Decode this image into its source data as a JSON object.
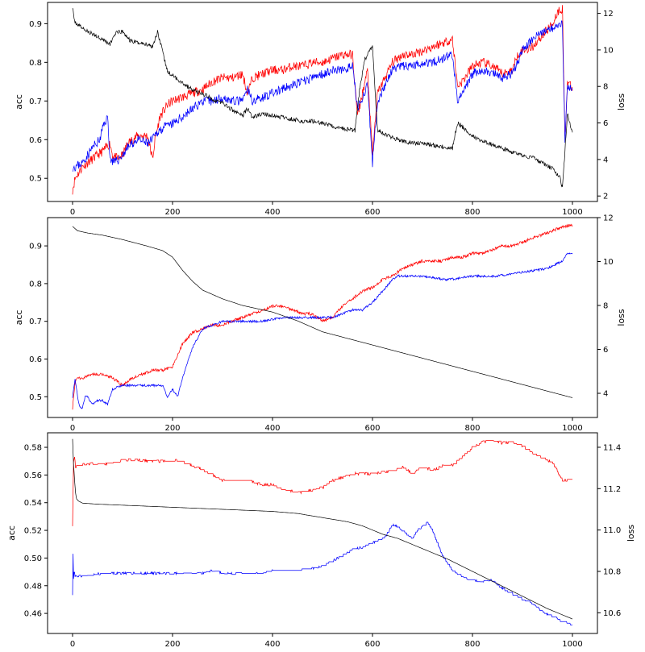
{
  "colors": {
    "train_acc": "#ff0000",
    "val_acc": "#0000ff",
    "loss": "#000000"
  },
  "chart_data": [
    {
      "type": "line",
      "ylabel": "acc",
      "y2label": "loss",
      "xlim": [
        -50,
        1050
      ],
      "ylim": [
        0.44,
        0.955
      ],
      "y2lim": [
        1.7,
        12.6
      ],
      "xticks": [
        0,
        200,
        400,
        600,
        800,
        1000
      ],
      "yticks": [
        0.5,
        0.6,
        0.7,
        0.8,
        0.9
      ],
      "y2ticks": [
        2,
        4,
        6,
        8,
        10,
        12
      ],
      "ytick_decimals": 1,
      "grid": false,
      "series": [
        {
          "axis": "left",
          "color": "#ff0000",
          "noise": 0.012,
          "seed": 11,
          "x": [
            0,
            5,
            20,
            40,
            60,
            75,
            80,
            90,
            100,
            110,
            130,
            150,
            160,
            165,
            175,
            190,
            200,
            220,
            240,
            260,
            280,
            300,
            320,
            340,
            350,
            360,
            380,
            400,
            420,
            440,
            460,
            480,
            500,
            520,
            540,
            560,
            570,
            590,
            600,
            610,
            640,
            660,
            680,
            700,
            720,
            740,
            760,
            770,
            780,
            800,
            820,
            840,
            860,
            880,
            890,
            900,
            920,
            940,
            960,
            970,
            980,
            985,
            990,
            1000
          ],
          "y": [
            0.47,
            0.5,
            0.53,
            0.55,
            0.57,
            0.59,
            0.56,
            0.55,
            0.56,
            0.59,
            0.61,
            0.61,
            0.55,
            0.6,
            0.66,
            0.69,
            0.7,
            0.71,
            0.72,
            0.73,
            0.75,
            0.76,
            0.76,
            0.77,
            0.72,
            0.76,
            0.77,
            0.78,
            0.78,
            0.79,
            0.79,
            0.8,
            0.8,
            0.81,
            0.82,
            0.82,
            0.66,
            0.78,
            0.56,
            0.72,
            0.8,
            0.82,
            0.82,
            0.83,
            0.84,
            0.85,
            0.86,
            0.74,
            0.75,
            0.79,
            0.8,
            0.79,
            0.77,
            0.78,
            0.82,
            0.83,
            0.84,
            0.87,
            0.9,
            0.93,
            0.94,
            0.6,
            0.75,
            0.73
          ]
        },
        {
          "axis": "left",
          "color": "#0000ff",
          "noise": 0.012,
          "seed": 23,
          "x": [
            0,
            5,
            20,
            40,
            55,
            60,
            70,
            75,
            85,
            100,
            110,
            130,
            150,
            160,
            170,
            180,
            200,
            220,
            240,
            260,
            280,
            300,
            320,
            340,
            350,
            360,
            380,
            400,
            420,
            440,
            460,
            480,
            500,
            520,
            540,
            560,
            570,
            590,
            600,
            610,
            640,
            660,
            680,
            700,
            720,
            740,
            760,
            770,
            780,
            800,
            820,
            840,
            860,
            880,
            890,
            900,
            920,
            940,
            960,
            970,
            980,
            985,
            990,
            1000
          ],
          "y": [
            0.53,
            0.53,
            0.54,
            0.58,
            0.6,
            0.63,
            0.66,
            0.55,
            0.54,
            0.56,
            0.58,
            0.6,
            0.59,
            0.6,
            0.62,
            0.63,
            0.64,
            0.66,
            0.68,
            0.7,
            0.7,
            0.71,
            0.7,
            0.7,
            0.73,
            0.7,
            0.71,
            0.72,
            0.73,
            0.74,
            0.75,
            0.76,
            0.77,
            0.78,
            0.78,
            0.79,
            0.68,
            0.74,
            0.54,
            0.7,
            0.78,
            0.79,
            0.79,
            0.8,
            0.8,
            0.81,
            0.82,
            0.7,
            0.72,
            0.77,
            0.78,
            0.77,
            0.76,
            0.77,
            0.8,
            0.83,
            0.86,
            0.88,
            0.89,
            0.9,
            0.9,
            0.6,
            0.74,
            0.73
          ]
        },
        {
          "axis": "right",
          "color": "#000000",
          "noise": 0.12,
          "seed": 37,
          "x": [
            0,
            3,
            10,
            30,
            60,
            75,
            85,
            100,
            115,
            130,
            150,
            160,
            170,
            180,
            190,
            200,
            220,
            240,
            260,
            280,
            300,
            320,
            340,
            350,
            360,
            380,
            400,
            420,
            440,
            460,
            480,
            500,
            520,
            540,
            560,
            565,
            575,
            585,
            600,
            610,
            630,
            660,
            680,
            700,
            720,
            740,
            760,
            770,
            780,
            800,
            820,
            840,
            860,
            880,
            900,
            920,
            940,
            960,
            975,
            980,
            990,
            1000
          ],
          "y": [
            12.4,
            11.6,
            11.4,
            11.0,
            10.6,
            10.3,
            10.9,
            11.0,
            10.5,
            10.4,
            10.3,
            10.2,
            11.0,
            9.9,
            8.8,
            8.6,
            8.2,
            7.8,
            7.6,
            7.3,
            7.1,
            6.7,
            6.4,
            6.8,
            6.3,
            6.5,
            6.4,
            6.3,
            6.2,
            6.1,
            6.1,
            6.0,
            5.8,
            5.7,
            5.6,
            5.6,
            8.0,
            9.5,
            10.2,
            5.6,
            5.3,
            5.0,
            4.9,
            4.9,
            4.8,
            4.7,
            4.6,
            6.0,
            5.8,
            5.3,
            5.0,
            4.8,
            4.6,
            4.4,
            4.2,
            4.1,
            3.8,
            3.5,
            3.0,
            2.4,
            6.5,
            5.4
          ]
        }
      ]
    },
    {
      "type": "line",
      "ylabel": "acc",
      "y2label": "loss",
      "xlim": [
        -50,
        1050
      ],
      "ylim": [
        0.445,
        0.975
      ],
      "y2lim": [
        2.9,
        12.0
      ],
      "xticks": [
        0,
        200,
        400,
        600,
        800,
        1000
      ],
      "yticks": [
        0.5,
        0.6,
        0.7,
        0.8,
        0.9
      ],
      "y2ticks": [
        4,
        6,
        8,
        10,
        12
      ],
      "ytick_decimals": 1,
      "grid": false,
      "series": [
        {
          "axis": "left",
          "color": "#ff0000",
          "noise": 0.004,
          "seed": 51,
          "x": [
            0,
            5,
            10,
            20,
            40,
            60,
            80,
            100,
            120,
            140,
            160,
            180,
            200,
            220,
            240,
            260,
            280,
            300,
            320,
            340,
            360,
            380,
            400,
            420,
            440,
            460,
            480,
            500,
            520,
            540,
            560,
            580,
            600,
            620,
            640,
            660,
            680,
            700,
            720,
            740,
            760,
            780,
            800,
            820,
            840,
            860,
            880,
            900,
            920,
            940,
            960,
            980,
            1000
          ],
          "y": [
            0.47,
            0.54,
            0.55,
            0.55,
            0.56,
            0.56,
            0.55,
            0.53,
            0.55,
            0.56,
            0.57,
            0.57,
            0.58,
            0.64,
            0.67,
            0.68,
            0.69,
            0.69,
            0.7,
            0.71,
            0.72,
            0.73,
            0.74,
            0.74,
            0.73,
            0.72,
            0.72,
            0.7,
            0.71,
            0.74,
            0.76,
            0.78,
            0.79,
            0.81,
            0.82,
            0.84,
            0.85,
            0.86,
            0.86,
            0.86,
            0.87,
            0.87,
            0.88,
            0.88,
            0.89,
            0.9,
            0.9,
            0.91,
            0.92,
            0.93,
            0.94,
            0.95,
            0.955
          ]
        },
        {
          "axis": "left",
          "color": "#0000ff",
          "noise": 0.003,
          "seed": 64,
          "x": [
            0,
            5,
            10,
            15,
            20,
            25,
            30,
            40,
            50,
            60,
            70,
            80,
            100,
            120,
            150,
            180,
            190,
            200,
            210,
            220,
            240,
            260,
            280,
            300,
            340,
            380,
            420,
            450,
            480,
            500,
            520,
            540,
            560,
            580,
            600,
            620,
            640,
            650,
            670,
            700,
            750,
            800,
            850,
            900,
            950,
            980,
            990,
            1000
          ],
          "y": [
            0.5,
            0.55,
            0.5,
            0.47,
            0.47,
            0.5,
            0.5,
            0.48,
            0.49,
            0.49,
            0.48,
            0.52,
            0.53,
            0.53,
            0.53,
            0.53,
            0.5,
            0.52,
            0.5,
            0.55,
            0.63,
            0.68,
            0.69,
            0.7,
            0.7,
            0.7,
            0.71,
            0.71,
            0.71,
            0.71,
            0.71,
            0.72,
            0.73,
            0.73,
            0.75,
            0.78,
            0.81,
            0.82,
            0.82,
            0.82,
            0.81,
            0.82,
            0.82,
            0.83,
            0.84,
            0.86,
            0.88,
            0.88
          ]
        },
        {
          "axis": "right",
          "color": "#000000",
          "noise": 0,
          "seed": 0,
          "x": [
            0,
            10,
            30,
            60,
            100,
            150,
            180,
            200,
            220,
            240,
            260,
            280,
            300,
            340,
            400,
            450,
            500,
            550,
            600,
            650,
            700,
            750,
            800,
            850,
            900,
            950,
            1000
          ],
          "y": [
            11.6,
            11.4,
            11.3,
            11.2,
            11.0,
            10.7,
            10.5,
            10.2,
            9.6,
            9.1,
            8.7,
            8.5,
            8.3,
            8.0,
            7.7,
            7.3,
            6.8,
            6.5,
            6.2,
            5.9,
            5.6,
            5.3,
            5.0,
            4.7,
            4.4,
            4.1,
            3.8
          ]
        }
      ]
    },
    {
      "type": "line",
      "ylabel": "acc",
      "y2label": "loss",
      "xlim": [
        -50,
        1050
      ],
      "ylim": [
        0.4455,
        0.5905
      ],
      "y2lim": [
        10.5,
        11.47
      ],
      "xticks": [
        0,
        200,
        400,
        600,
        800,
        1000
      ],
      "yticks": [
        0.46,
        0.48,
        0.5,
        0.52,
        0.54,
        0.56,
        0.58
      ],
      "y2ticks": [
        10.6,
        10.8,
        11.0,
        11.2,
        11.4
      ],
      "ytick_decimals": 2,
      "grid": false,
      "series": [
        {
          "axis": "left",
          "color": "#ff0000",
          "noise": 0.001,
          "seed": 77,
          "step": true,
          "x": [
            0,
            2,
            4,
            6,
            8,
            15,
            30,
            60,
            90,
            100,
            130,
            150,
            200,
            210,
            230,
            260,
            280,
            300,
            330,
            350,
            380,
            400,
            420,
            450,
            500,
            520,
            560,
            600,
            620,
            640,
            660,
            680,
            700,
            720,
            740,
            760,
            780,
            800,
            820,
            840,
            860,
            880,
            900,
            930,
            960,
            970,
            980,
            1000
          ],
          "y": [
            0.524,
            0.57,
            0.574,
            0.565,
            0.566,
            0.568,
            0.568,
            0.568,
            0.569,
            0.571,
            0.571,
            0.57,
            0.57,
            0.571,
            0.568,
            0.564,
            0.56,
            0.556,
            0.556,
            0.556,
            0.553,
            0.553,
            0.55,
            0.547,
            0.551,
            0.556,
            0.561,
            0.561,
            0.562,
            0.563,
            0.566,
            0.561,
            0.566,
            0.563,
            0.567,
            0.567,
            0.573,
            0.58,
            0.584,
            0.585,
            0.583,
            0.584,
            0.581,
            0.574,
            0.569,
            0.563,
            0.556,
            0.557
          ]
        },
        {
          "axis": "left",
          "color": "#0000ff",
          "noise": 0.0008,
          "seed": 88,
          "step": true,
          "x": [
            0,
            1,
            2,
            3,
            5,
            8,
            20,
            60,
            100,
            140,
            180,
            220,
            260,
            280,
            300,
            340,
            380,
            400,
            450,
            490,
            500,
            520,
            560,
            580,
            600,
            620,
            630,
            640,
            650,
            660,
            680,
            690,
            700,
            710,
            720,
            730,
            740,
            760,
            780,
            800,
            820,
            840,
            860,
            880,
            900,
            920,
            940,
            960,
            980,
            1000
          ],
          "y": [
            0.474,
            0.503,
            0.485,
            0.49,
            0.487,
            0.487,
            0.487,
            0.489,
            0.489,
            0.489,
            0.489,
            0.489,
            0.489,
            0.491,
            0.489,
            0.489,
            0.489,
            0.491,
            0.491,
            0.493,
            0.494,
            0.498,
            0.506,
            0.508,
            0.511,
            0.514,
            0.518,
            0.524,
            0.523,
            0.52,
            0.514,
            0.52,
            0.523,
            0.526,
            0.52,
            0.511,
            0.502,
            0.491,
            0.486,
            0.484,
            0.483,
            0.484,
            0.478,
            0.474,
            0.47,
            0.467,
            0.461,
            0.458,
            0.454,
            0.452
          ]
        },
        {
          "axis": "right",
          "color": "#000000",
          "noise": 0,
          "seed": 0,
          "x": [
            0,
            2,
            4,
            6,
            8,
            12,
            20,
            50,
            100,
            150,
            200,
            250,
            300,
            350,
            400,
            450,
            500,
            550,
            580,
            600,
            620,
            650,
            700,
            750,
            800,
            850,
            900,
            950,
            1000
          ],
          "y": [
            11.44,
            11.32,
            11.24,
            11.18,
            11.15,
            11.14,
            11.13,
            11.125,
            11.12,
            11.115,
            11.11,
            11.105,
            11.1,
            11.095,
            11.09,
            11.08,
            11.06,
            11.04,
            11.02,
            11.0,
            10.98,
            10.96,
            10.91,
            10.86,
            10.8,
            10.74,
            10.68,
            10.62,
            10.57
          ]
        }
      ]
    }
  ]
}
